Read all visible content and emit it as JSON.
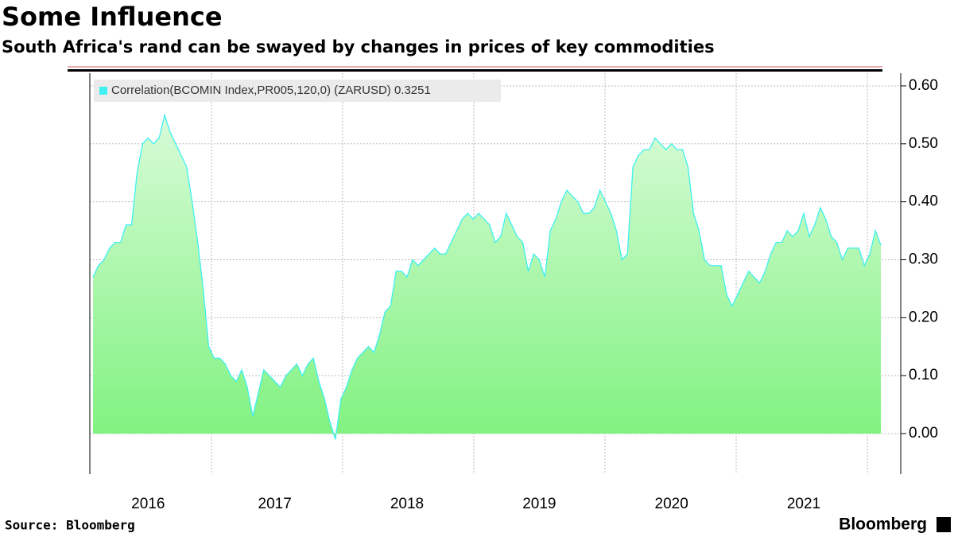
{
  "chart_data": {
    "type": "area",
    "title": "Some Influence",
    "subtitle": "South Africa's rand can be swayed by changes in prices of key commodities",
    "source": "Source: Bloomberg",
    "brand": "Bloomberg",
    "categories": [
      null,
      null,
      null,
      null,
      null,
      null,
      null,
      null,
      null,
      null,
      "2016",
      null,
      null,
      null,
      null,
      null,
      null,
      null,
      null,
      null,
      null,
      null,
      null,
      null,
      null,
      null,
      null,
      null,
      null,
      null,
      null,
      null,
      null,
      "2017",
      null,
      null,
      null,
      null,
      null,
      null,
      null,
      null,
      null,
      null,
      null,
      null,
      null,
      null,
      null,
      null,
      null,
      null,
      null,
      null,
      null,
      null,
      null,
      "2018",
      null,
      null,
      null,
      null,
      null,
      null,
      null,
      null,
      null,
      null,
      null,
      null,
      null,
      null,
      null,
      null,
      null,
      null,
      null,
      null,
      null,
      null,
      null,
      "2019",
      null,
      null,
      null,
      null,
      null,
      null,
      null,
      null,
      null,
      null,
      null,
      null,
      null,
      null,
      null,
      null,
      null,
      null,
      null,
      null,
      null,
      null,
      null,
      "2020",
      null,
      null,
      null,
      null,
      null,
      null,
      null,
      null,
      null,
      null,
      null,
      null,
      null,
      null,
      null,
      null,
      null,
      null,
      null,
      null,
      null,
      null,
      null,
      "2021",
      null,
      null,
      null,
      null,
      null,
      null,
      null,
      null,
      null,
      null,
      null,
      null,
      null,
      null
    ],
    "series": [
      {
        "name": "Correlation(BCOMIN Index,PR005,120,0) (ZARUSD) 0.3251",
        "color": "#3ff0f0",
        "values": [
          0.27,
          0.29,
          0.3,
          0.32,
          0.33,
          0.33,
          0.36,
          0.36,
          0.45,
          0.5,
          0.51,
          0.5,
          0.51,
          0.55,
          0.52,
          0.5,
          0.48,
          0.46,
          0.4,
          0.33,
          0.25,
          0.15,
          0.13,
          0.13,
          0.12,
          0.1,
          0.09,
          0.11,
          0.08,
          0.03,
          0.07,
          0.11,
          0.1,
          0.09,
          0.08,
          0.1,
          0.11,
          0.12,
          0.1,
          0.12,
          0.13,
          0.09,
          0.06,
          0.02,
          -0.01,
          0.06,
          0.08,
          0.11,
          0.13,
          0.14,
          0.15,
          0.14,
          0.17,
          0.21,
          0.22,
          0.28,
          0.28,
          0.27,
          0.3,
          0.29,
          0.3,
          0.31,
          0.32,
          0.31,
          0.31,
          0.33,
          0.35,
          0.37,
          0.38,
          0.37,
          0.38,
          0.37,
          0.36,
          0.33,
          0.34,
          0.38,
          0.36,
          0.34,
          0.33,
          0.28,
          0.31,
          0.3,
          0.27,
          0.35,
          0.37,
          0.4,
          0.42,
          0.41,
          0.4,
          0.38,
          0.38,
          0.39,
          0.42,
          0.4,
          0.38,
          0.35,
          0.3,
          0.31,
          0.46,
          0.48,
          0.49,
          0.49,
          0.51,
          0.5,
          0.49,
          0.5,
          0.49,
          0.49,
          0.46,
          0.38,
          0.35,
          0.3,
          0.29,
          0.29,
          0.29,
          0.24,
          0.22,
          0.24,
          0.26,
          0.28,
          0.27,
          0.26,
          0.28,
          0.31,
          0.33,
          0.33,
          0.35,
          0.34,
          0.35,
          0.38,
          0.34,
          0.36,
          0.39,
          0.37,
          0.34,
          0.33,
          0.3,
          0.32,
          0.32,
          0.32,
          0.29,
          0.31,
          0.35,
          0.3251
        ]
      }
    ],
    "ylim": [
      -0.07,
      0.63
    ],
    "yticks": [
      {
        "value": 0.6,
        "label": "0.60"
      },
      {
        "value": 0.5,
        "label": "0.50"
      },
      {
        "value": 0.4,
        "label": "0.40"
      },
      {
        "value": 0.3,
        "label": "0.30"
      },
      {
        "value": 0.2,
        "label": "0.20"
      },
      {
        "value": 0.1,
        "label": "0.10"
      },
      {
        "value": 0,
        "label": "0.00"
      }
    ],
    "grid": true
  }
}
